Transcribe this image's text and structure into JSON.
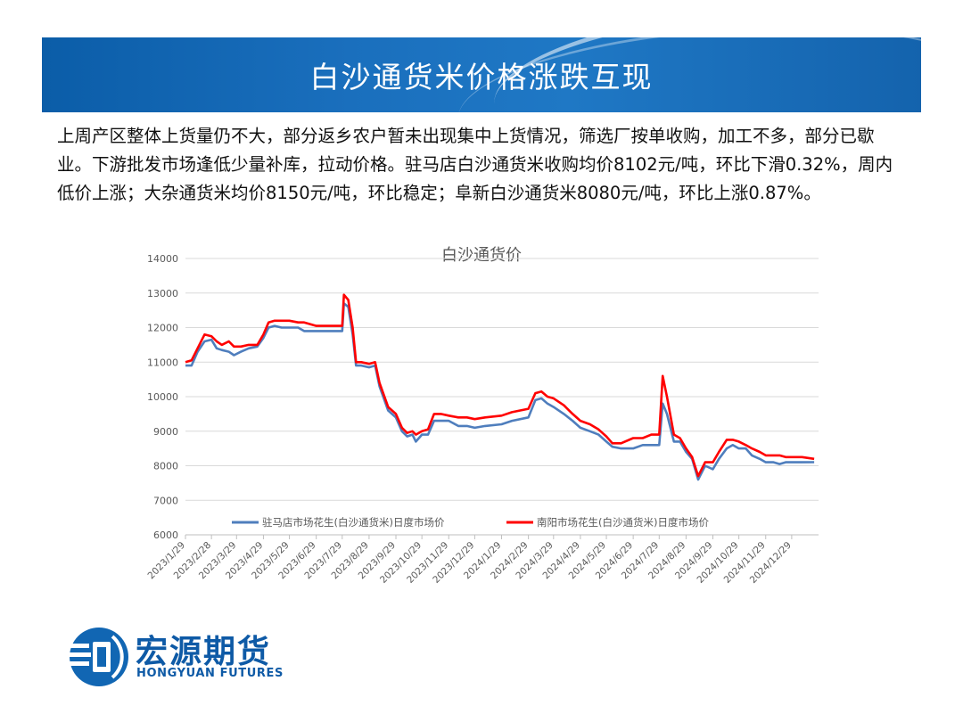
{
  "header": {
    "title": "白沙通货米价格涨跌互现"
  },
  "paragraph": "上周产区整体上货量仍不大，部分返乡农户暂未出现集中上货情况，筛选厂按单收购，加工不多，部分已歇业。下游批发市场逢低少量补库，拉动价格。驻马店白沙通货米收购均价8102元/吨，环比下滑0.32%，周内低价上涨；大杂通货米均价8150元/吨，环比稳定；阜新白沙通货米8080元/吨，环比上涨0.87%。",
  "logo": {
    "name": "宏源期货",
    "en": "HONGYUAN FUTURES",
    "icon": "hongyuan-logo-icon"
  },
  "colors": {
    "banner": "#1a6fbd",
    "series1": "#4f7ebd",
    "series2": "#ff0000",
    "grid": "#d9d9d9"
  },
  "chart_data": {
    "type": "line",
    "title": "白沙通货价",
    "ylim": [
      6000,
      14000
    ],
    "yticks": [
      6000,
      7000,
      8000,
      9000,
      10000,
      11000,
      12000,
      13000,
      14000
    ],
    "xlim": [
      "2023-01-29",
      "2025-01-29"
    ],
    "xticks": [
      "2023/1/29",
      "2023/2/28",
      "2023/3/29",
      "2023/4/29",
      "2023/5/29",
      "2023/6/29",
      "2023/7/29",
      "2023/8/29",
      "2023/9/29",
      "2023/10/29",
      "2023/11/29",
      "2023/12/29",
      "2024/1/29",
      "2024/2/29",
      "2024/3/29",
      "2024/4/29",
      "2024/5/29",
      "2024/6/29",
      "2024/7/29",
      "2024/8/29",
      "2024/9/29",
      "2024/10/29",
      "2024/11/29",
      "2024/12/29"
    ],
    "legend_position": "bottom",
    "grid": true,
    "series": [
      {
        "name": "驻马店市场花生(白沙通货米)日度市场价",
        "color": "#4f7ebd",
        "points": [
          [
            "2023-01-29",
            10900
          ],
          [
            "2023-02-05",
            10900
          ],
          [
            "2023-02-12",
            11300
          ],
          [
            "2023-02-20",
            11600
          ],
          [
            "2023-02-28",
            11650
          ],
          [
            "2023-03-06",
            11400
          ],
          [
            "2023-03-12",
            11350
          ],
          [
            "2023-03-20",
            11300
          ],
          [
            "2023-03-26",
            11200
          ],
          [
            "2023-04-03",
            11300
          ],
          [
            "2023-04-12",
            11400
          ],
          [
            "2023-04-22",
            11450
          ],
          [
            "2023-04-29",
            11700
          ],
          [
            "2023-05-05",
            12000
          ],
          [
            "2023-05-12",
            12050
          ],
          [
            "2023-05-20",
            12000
          ],
          [
            "2023-05-29",
            12000
          ],
          [
            "2023-06-08",
            12000
          ],
          [
            "2023-06-15",
            11900
          ],
          [
            "2023-06-29",
            11900
          ],
          [
            "2023-07-15",
            11900
          ],
          [
            "2023-07-29",
            11900
          ],
          [
            "2023-07-31",
            12700
          ],
          [
            "2023-08-05",
            12600
          ],
          [
            "2023-08-10",
            11800
          ],
          [
            "2023-08-14",
            10900
          ],
          [
            "2023-08-20",
            10900
          ],
          [
            "2023-08-29",
            10850
          ],
          [
            "2023-09-05",
            10900
          ],
          [
            "2023-09-10",
            10300
          ],
          [
            "2023-09-20",
            9600
          ],
          [
            "2023-09-29",
            9400
          ],
          [
            "2023-10-06",
            9000
          ],
          [
            "2023-10-12",
            8850
          ],
          [
            "2023-10-18",
            8900
          ],
          [
            "2023-10-22",
            8700
          ],
          [
            "2023-10-29",
            8900
          ],
          [
            "2023-11-05",
            8900
          ],
          [
            "2023-11-12",
            9300
          ],
          [
            "2023-11-20",
            9300
          ],
          [
            "2023-11-29",
            9300
          ],
          [
            "2023-12-10",
            9150
          ],
          [
            "2023-12-20",
            9150
          ],
          [
            "2023-12-29",
            9100
          ],
          [
            "2024-01-10",
            9150
          ],
          [
            "2024-01-29",
            9200
          ],
          [
            "2024-02-10",
            9300
          ],
          [
            "2024-02-29",
            9400
          ],
          [
            "2024-03-08",
            9900
          ],
          [
            "2024-03-15",
            9950
          ],
          [
            "2024-03-22",
            9800
          ],
          [
            "2024-03-29",
            9700
          ],
          [
            "2024-04-10",
            9500
          ],
          [
            "2024-04-20",
            9300
          ],
          [
            "2024-04-29",
            9100
          ],
          [
            "2024-05-10",
            9000
          ],
          [
            "2024-05-20",
            8900
          ],
          [
            "2024-05-29",
            8700
          ],
          [
            "2024-06-05",
            8550
          ],
          [
            "2024-06-15",
            8500
          ],
          [
            "2024-06-29",
            8500
          ],
          [
            "2024-07-10",
            8600
          ],
          [
            "2024-07-20",
            8600
          ],
          [
            "2024-07-29",
            8600
          ],
          [
            "2024-08-02",
            9800
          ],
          [
            "2024-08-07",
            9500
          ],
          [
            "2024-08-15",
            8700
          ],
          [
            "2024-08-22",
            8700
          ],
          [
            "2024-08-29",
            8400
          ],
          [
            "2024-09-05",
            8200
          ],
          [
            "2024-09-12",
            7600
          ],
          [
            "2024-09-20",
            8000
          ],
          [
            "2024-09-29",
            7900
          ],
          [
            "2024-10-06",
            8200
          ],
          [
            "2024-10-15",
            8500
          ],
          [
            "2024-10-22",
            8600
          ],
          [
            "2024-10-29",
            8500
          ],
          [
            "2024-11-06",
            8500
          ],
          [
            "2024-11-13",
            8300
          ],
          [
            "2024-11-22",
            8200
          ],
          [
            "2024-11-29",
            8100
          ],
          [
            "2024-12-08",
            8100
          ],
          [
            "2024-12-15",
            8050
          ],
          [
            "2024-12-22",
            8100
          ],
          [
            "2024-12-29",
            8100
          ],
          [
            "2025-01-10",
            8100
          ],
          [
            "2025-01-24",
            8102
          ]
        ]
      },
      {
        "name": "南阳市场花生(白沙通货米)日度市场价",
        "color": "#ff0000",
        "points": [
          [
            "2023-01-29",
            11000
          ],
          [
            "2023-02-05",
            11050
          ],
          [
            "2023-02-12",
            11400
          ],
          [
            "2023-02-20",
            11800
          ],
          [
            "2023-02-28",
            11750
          ],
          [
            "2023-03-06",
            11600
          ],
          [
            "2023-03-12",
            11500
          ],
          [
            "2023-03-20",
            11600
          ],
          [
            "2023-03-26",
            11450
          ],
          [
            "2023-04-03",
            11450
          ],
          [
            "2023-04-12",
            11500
          ],
          [
            "2023-04-22",
            11500
          ],
          [
            "2023-04-29",
            11800
          ],
          [
            "2023-05-05",
            12150
          ],
          [
            "2023-05-12",
            12200
          ],
          [
            "2023-05-20",
            12200
          ],
          [
            "2023-05-29",
            12200
          ],
          [
            "2023-06-08",
            12150
          ],
          [
            "2023-06-15",
            12150
          ],
          [
            "2023-06-29",
            12050
          ],
          [
            "2023-07-15",
            12050
          ],
          [
            "2023-07-29",
            12050
          ],
          [
            "2023-07-31",
            12950
          ],
          [
            "2023-08-05",
            12800
          ],
          [
            "2023-08-10",
            12000
          ],
          [
            "2023-08-14",
            11000
          ],
          [
            "2023-08-20",
            11000
          ],
          [
            "2023-08-29",
            10950
          ],
          [
            "2023-09-05",
            11000
          ],
          [
            "2023-09-10",
            10400
          ],
          [
            "2023-09-20",
            9700
          ],
          [
            "2023-09-29",
            9500
          ],
          [
            "2023-10-06",
            9100
          ],
          [
            "2023-10-12",
            8950
          ],
          [
            "2023-10-18",
            9000
          ],
          [
            "2023-10-22",
            8900
          ],
          [
            "2023-10-29",
            9000
          ],
          [
            "2023-11-05",
            9050
          ],
          [
            "2023-11-12",
            9500
          ],
          [
            "2023-11-20",
            9500
          ],
          [
            "2023-11-29",
            9450
          ],
          [
            "2023-12-10",
            9400
          ],
          [
            "2023-12-20",
            9400
          ],
          [
            "2023-12-29",
            9350
          ],
          [
            "2024-01-10",
            9400
          ],
          [
            "2024-01-29",
            9450
          ],
          [
            "2024-02-10",
            9550
          ],
          [
            "2024-02-29",
            9650
          ],
          [
            "2024-03-08",
            10100
          ],
          [
            "2024-03-15",
            10150
          ],
          [
            "2024-03-22",
            10000
          ],
          [
            "2024-03-29",
            9950
          ],
          [
            "2024-04-10",
            9750
          ],
          [
            "2024-04-20",
            9500
          ],
          [
            "2024-04-29",
            9300
          ],
          [
            "2024-05-10",
            9200
          ],
          [
            "2024-05-20",
            9050
          ],
          [
            "2024-05-29",
            8850
          ],
          [
            "2024-06-05",
            8650
          ],
          [
            "2024-06-15",
            8650
          ],
          [
            "2024-06-29",
            8800
          ],
          [
            "2024-07-10",
            8800
          ],
          [
            "2024-07-20",
            8900
          ],
          [
            "2024-07-29",
            8900
          ],
          [
            "2024-08-02",
            10600
          ],
          [
            "2024-08-07",
            10000
          ],
          [
            "2024-08-15",
            8900
          ],
          [
            "2024-08-22",
            8800
          ],
          [
            "2024-08-29",
            8500
          ],
          [
            "2024-09-05",
            8250
          ],
          [
            "2024-09-12",
            7700
          ],
          [
            "2024-09-20",
            8100
          ],
          [
            "2024-09-29",
            8100
          ],
          [
            "2024-10-06",
            8400
          ],
          [
            "2024-10-15",
            8750
          ],
          [
            "2024-10-22",
            8750
          ],
          [
            "2024-10-29",
            8700
          ],
          [
            "2024-11-06",
            8600
          ],
          [
            "2024-11-13",
            8500
          ],
          [
            "2024-11-22",
            8400
          ],
          [
            "2024-11-29",
            8300
          ],
          [
            "2024-12-08",
            8300
          ],
          [
            "2024-12-15",
            8300
          ],
          [
            "2024-12-22",
            8250
          ],
          [
            "2024-12-29",
            8250
          ],
          [
            "2025-01-10",
            8250
          ],
          [
            "2025-01-24",
            8200
          ]
        ]
      }
    ]
  }
}
